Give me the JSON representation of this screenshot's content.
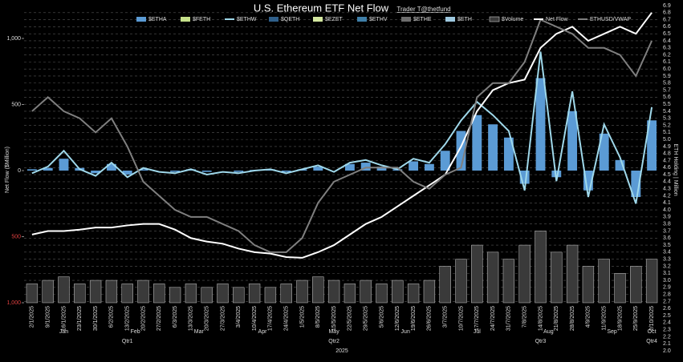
{
  "chart_data": {
    "type": "combo",
    "title": "U.S. Ethereum ETF Net Flow",
    "subtitle": "Trader T@thetfund",
    "ylabel": "Net Flow ($Million)",
    "y2label": "ETH Holding | Million",
    "categories": [
      "2/1/2025",
      "9/1/2025",
      "16/1/2025",
      "23/1/2025",
      "30/1/2025",
      "6/2/2025",
      "13/2/2025",
      "20/2/2025",
      "27/2/2025",
      "6/3/2025",
      "13/3/2025",
      "20/3/2025",
      "27/3/2025",
      "3/4/2025",
      "10/4/2025",
      "17/4/2025",
      "24/4/2025",
      "1/5/2025",
      "8/5/2025",
      "15/5/2025",
      "22/5/2025",
      "29/5/2025",
      "5/6/2025",
      "12/6/2025",
      "19/6/2025",
      "26/6/2025",
      "3/7/2025",
      "10/7/2025",
      "17/7/2025",
      "24/7/2025",
      "31/7/2025",
      "7/8/2025",
      "14/8/2025",
      "21/8/2025",
      "28/8/2025",
      "4/9/2025",
      "11/9/2025",
      "18/9/2025",
      "25/9/2025",
      "2/10/2025"
    ],
    "months": [
      "Jan",
      "Feb",
      "Mar",
      "Apr",
      "May",
      "Jun",
      "Jul",
      "Aug",
      "Sep",
      "Oct"
    ],
    "quarters": [
      "Qtr1",
      "Qtr2",
      "Qtr3",
      "Qtr4"
    ],
    "year": "2025",
    "ylim": [
      -1000,
      1000
    ],
    "yticks": [
      {
        "value": 1000,
        "label": "1,000"
      },
      500,
      0,
      {
        "value": -500,
        "label": "500"
      },
      {
        "value": -1000,
        "label": "1,000"
      }
    ],
    "y2lim": [
      2.0,
      6.9
    ],
    "y2ticks": [
      {
        "value": 2,
        "label": "2.0"
      },
      2.1,
      2.2,
      2.3,
      2.4,
      2.5,
      2.6,
      2.7,
      2.8,
      2.9,
      {
        "value": 3,
        "label": "3.0"
      },
      3.1,
      3.2,
      3.3,
      3.4,
      3.5,
      3.6,
      3.7,
      3.8,
      3.9,
      {
        "value": 4,
        "label": "4.0"
      },
      4.1,
      4.2,
      4.3,
      4.4,
      4.5,
      4.6,
      4.7,
      4.8,
      4.9,
      {
        "value": 5,
        "label": "5.0"
      },
      5.1,
      5.2,
      5.3,
      5.4,
      5.5,
      5.6,
      5.7,
      5.8,
      5.9,
      {
        "value": 6,
        "label": "6.0"
      },
      6.1,
      6.2,
      6.3,
      6.4,
      6.5,
      6.6,
      6.7,
      6.8,
      6.9
    ],
    "grid": true,
    "series": [
      {
        "name": "$ETHA",
        "color": "#5b9bd5",
        "style": "bar",
        "values": [
          10,
          20,
          90,
          20,
          -20,
          50,
          -30,
          10,
          0,
          -10,
          10,
          -10,
          0,
          -10,
          5,
          10,
          -10,
          10,
          30,
          0,
          50,
          60,
          30,
          10,
          70,
          50,
          150,
          300,
          420,
          350,
          250,
          -100,
          700,
          -50,
          450,
          -150,
          280,
          80,
          -200,
          380
        ]
      },
      {
        "name": "$FETH",
        "color": "#c5e08a",
        "style": "bar"
      },
      {
        "name": "$ETHW",
        "color": "#9fd8ea",
        "style": "line",
        "values": [
          -20,
          30,
          150,
          10,
          -40,
          60,
          -50,
          20,
          -10,
          -20,
          10,
          -30,
          -10,
          -20,
          0,
          10,
          -20,
          10,
          40,
          -10,
          60,
          80,
          40,
          10,
          90,
          60,
          200,
          380,
          520,
          420,
          300,
          -150,
          900,
          -80,
          600,
          -200,
          350,
          100,
          -250,
          480
        ]
      },
      {
        "name": "$QETH",
        "color": "#2f5f8a",
        "style": "bar"
      },
      {
        "name": "$EZET",
        "color": "#d4e8a0",
        "style": "bar"
      },
      {
        "name": "$ETHV",
        "color": "#3f7fa8",
        "style": "bar"
      },
      {
        "name": "$ETHE",
        "color": "#6d6d6d",
        "style": "bar"
      },
      {
        "name": "$ETH",
        "color": "#9ec9e0",
        "style": "bar"
      },
      {
        "name": "$Volume",
        "color": "#3a3a3a",
        "style": "volume",
        "axis": "y2",
        "values": [
          2.95,
          3.0,
          3.05,
          2.95,
          3.0,
          3.0,
          2.95,
          3.0,
          2.95,
          2.9,
          2.95,
          2.9,
          2.95,
          2.9,
          2.95,
          2.9,
          2.95,
          3.0,
          3.05,
          3.0,
          2.95,
          3.0,
          2.95,
          3.0,
          2.95,
          3.0,
          3.2,
          3.3,
          3.5,
          3.4,
          3.3,
          3.5,
          3.7,
          3.4,
          3.5,
          3.2,
          3.3,
          3.1,
          3.2,
          3.3
        ]
      },
      {
        "name": "Net Flow",
        "color": "#ffffff",
        "style": "line",
        "axis": "y2",
        "values": [
          3.65,
          3.7,
          3.7,
          3.72,
          3.75,
          3.75,
          3.78,
          3.8,
          3.8,
          3.72,
          3.6,
          3.55,
          3.52,
          3.45,
          3.4,
          3.38,
          3.33,
          3.32,
          3.4,
          3.5,
          3.65,
          3.8,
          3.9,
          4.05,
          4.2,
          4.35,
          4.5,
          4.9,
          5.4,
          5.7,
          5.8,
          5.85,
          6.3,
          6.5,
          6.6,
          6.4,
          6.5,
          6.6,
          6.5,
          6.8
        ]
      },
      {
        "name": "ETHUSD/VWAP",
        "color": "#7f7f7f",
        "style": "line",
        "axis": "y2",
        "values": [
          5.4,
          5.6,
          5.4,
          5.3,
          5.1,
          5.3,
          4.9,
          4.4,
          4.2,
          4.0,
          3.9,
          3.9,
          3.8,
          3.7,
          3.5,
          3.4,
          3.4,
          3.6,
          4.1,
          4.4,
          4.5,
          4.6,
          4.6,
          4.6,
          4.4,
          4.3,
          4.5,
          4.6,
          5.6,
          5.8,
          5.8,
          6.1,
          6.7,
          6.6,
          6.5,
          6.3,
          6.3,
          6.2,
          5.9,
          6.4
        ]
      }
    ]
  }
}
